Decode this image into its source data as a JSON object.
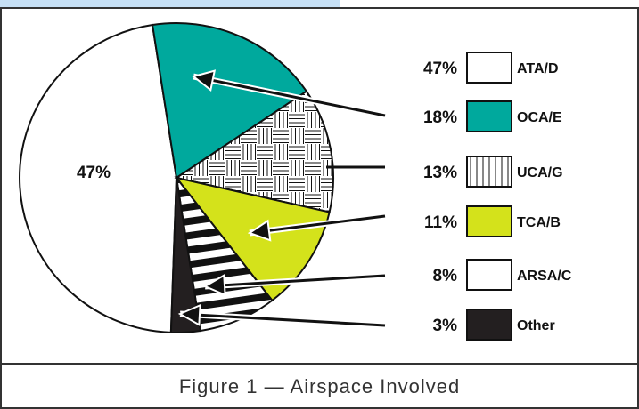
{
  "caption": "Figure 1 — Airspace Involved",
  "colors": {
    "accent_strip": "#c6e0f5",
    "frame": "#333333",
    "teal": "#00a99d",
    "yellow_green": "#d4e21b",
    "dark": "#231f20"
  },
  "chart_data": {
    "type": "pie",
    "title": "",
    "slices": [
      {
        "label": "ATA/D",
        "value": 47,
        "display": "47%",
        "fill": "white",
        "pattern": "none"
      },
      {
        "label": "OCA/E",
        "value": 18,
        "display": "18%",
        "fill": "#00a99d",
        "pattern": "none"
      },
      {
        "label": "UCA/G",
        "value": 13,
        "display": "13%",
        "fill": "white",
        "pattern": "basketweave"
      },
      {
        "label": "TCA/B",
        "value": 11,
        "display": "11%",
        "fill": "#d4e21b",
        "pattern": "none"
      },
      {
        "label": "ARSA/C",
        "value": 8,
        "display": "8%",
        "fill": "white",
        "pattern": "horizontal-stripes"
      },
      {
        "label": "Other",
        "value": 3,
        "display": "3%",
        "fill": "#231f20",
        "pattern": "none"
      }
    ],
    "in_pie_label": "47%",
    "legend_position": "right"
  }
}
